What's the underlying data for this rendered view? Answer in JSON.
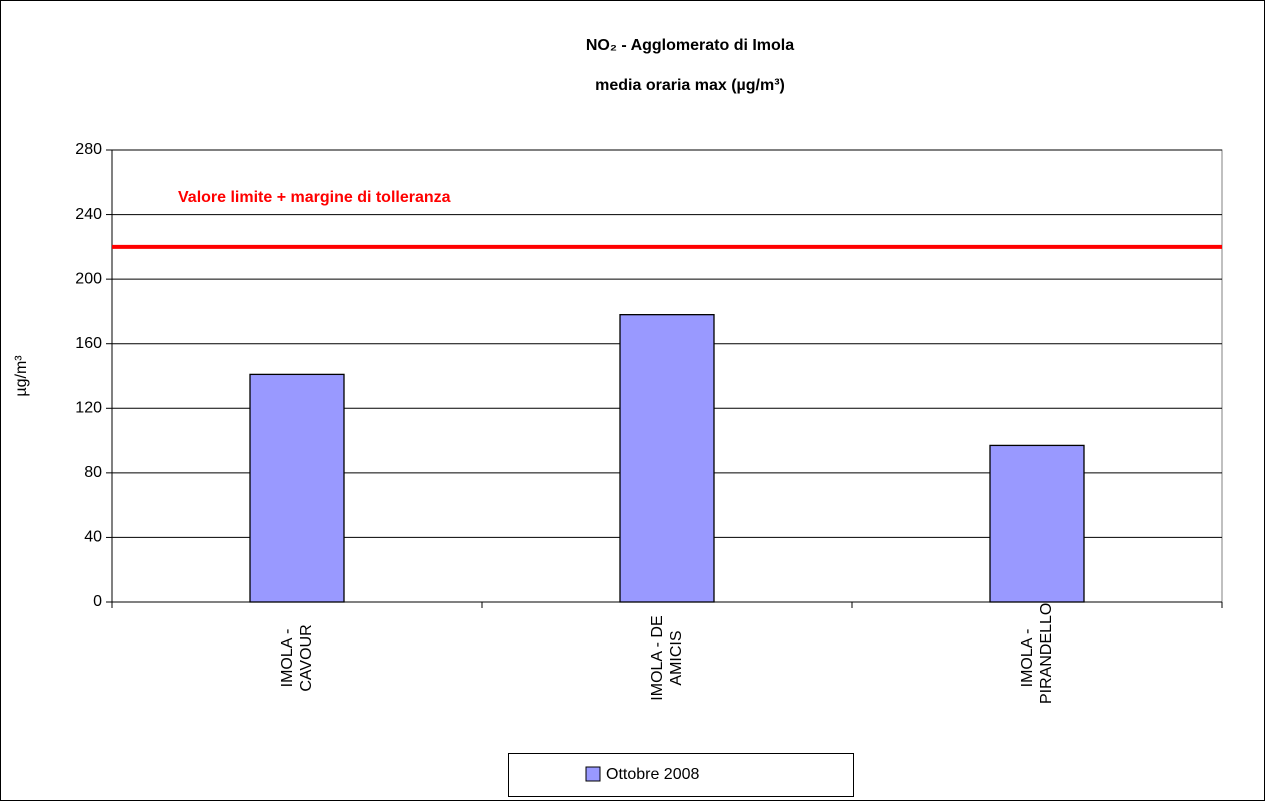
{
  "chart_data": {
    "type": "bar",
    "title": [
      "NO₂ - Agglomerato di Imola",
      "media oraria max  (µg/m³)"
    ],
    "y_label": "µg/m³",
    "categories": [
      "IMOLA - CAVOUR",
      "IMOLA - DE AMICIS",
      "IMOLA - PIRANDELLO"
    ],
    "series": [
      {
        "name": "Ottobre 2008",
        "color": "#9999ff",
        "values": [
          141,
          178,
          97
        ]
      }
    ],
    "ylim": [
      0,
      280
    ],
    "yticks": [
      0,
      40,
      80,
      120,
      160,
      200,
      240,
      280
    ],
    "grid": true,
    "reference_line": {
      "value": 220,
      "label": "Valore limite + margine di tolleranza",
      "color": "#ff0000"
    },
    "legend": "bottom"
  }
}
